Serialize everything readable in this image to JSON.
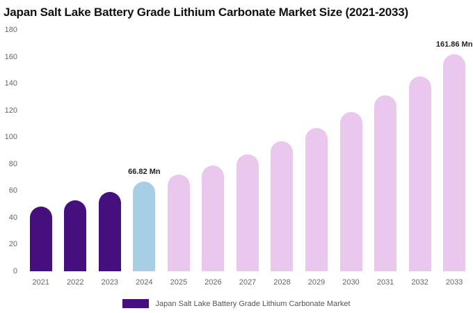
{
  "chart_data": {
    "type": "bar",
    "title": "Japan Salt Lake Battery Grade Lithium Carbonate Market Size (2021-2033)",
    "categories": [
      "2021",
      "2022",
      "2023",
      "2024",
      "2025",
      "2026",
      "2027",
      "2028",
      "2029",
      "2030",
      "2031",
      "2032",
      "2033"
    ],
    "values": [
      48,
      53,
      59,
      66.82,
      72,
      79,
      87,
      97,
      107,
      119,
      131,
      145,
      161.86
    ],
    "bar_colors": [
      "#45107E",
      "#45107E",
      "#45107E",
      "#A6CEE4",
      "#EAC7EC",
      "#EAC7EC",
      "#EAC7EC",
      "#EAC7EC",
      "#EAC7EC",
      "#EAC7EC",
      "#EAC7EC",
      "#EAC7EC",
      "#EAC7EC"
    ],
    "annotations": [
      {
        "index": 3,
        "text": "66.82 Mn"
      },
      {
        "index": 12,
        "text": "161.86 Mn"
      }
    ],
    "xlabel": "",
    "ylabel": "",
    "ylim": [
      0,
      180
    ],
    "yticks": [
      0,
      20,
      40,
      60,
      80,
      100,
      120,
      140,
      160,
      180
    ],
    "grid": false,
    "legend": {
      "label": "Japan Salt Lake Battery Grade Lithium Carbonate Market",
      "swatch_color": "#45107E",
      "position": "bottom"
    }
  }
}
